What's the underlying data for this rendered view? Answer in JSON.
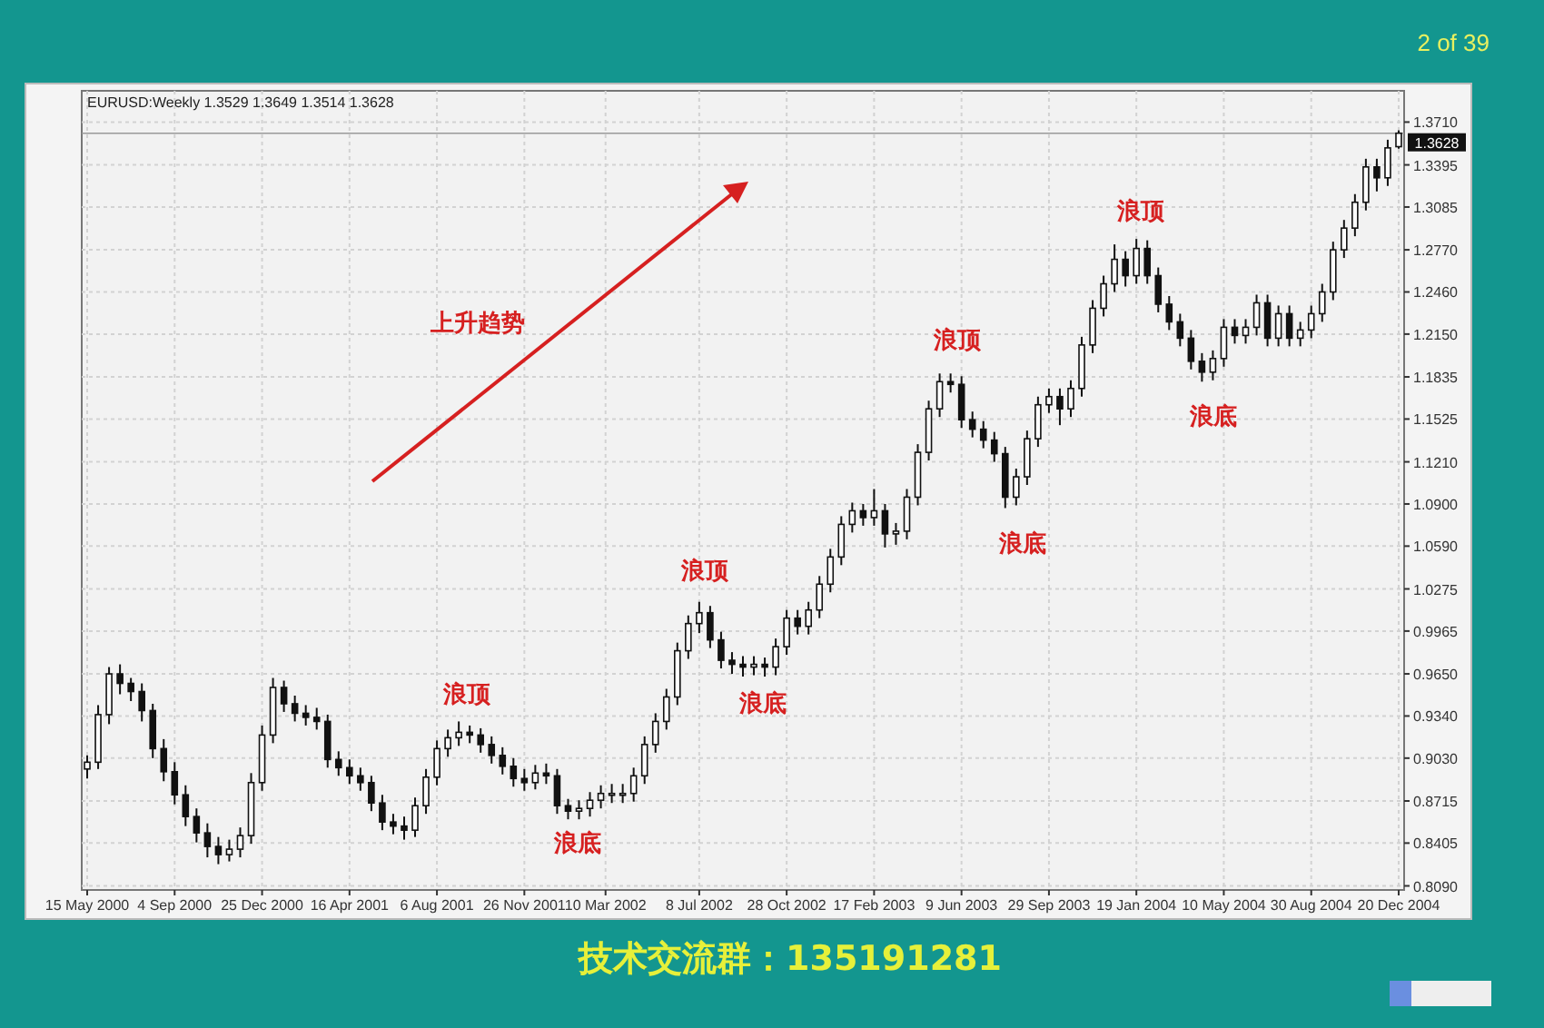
{
  "chart_data": {
    "type": "candlestick",
    "title": "EURUSD:Weekly  1.3529 1.3649 1.3514 1.3628",
    "color": "#111111",
    "x": [
      "2000-05-15",
      "2000-05-29",
      "2000-06-12",
      "2000-06-26",
      "2000-07-10",
      "2000-07-24",
      "2000-08-07",
      "2000-08-21",
      "2000-09-04",
      "2000-09-18",
      "2000-10-02",
      "2000-10-16",
      "2000-10-30",
      "2000-11-13",
      "2000-11-27",
      "2000-12-11",
      "2000-12-25",
      "2001-01-08",
      "2001-01-22",
      "2001-02-05",
      "2001-02-19",
      "2001-03-05",
      "2001-03-19",
      "2001-04-02",
      "2001-04-16",
      "2001-04-30",
      "2001-05-14",
      "2001-05-28",
      "2001-06-11",
      "2001-06-25",
      "2001-07-09",
      "2001-07-23",
      "2001-08-06",
      "2001-08-20",
      "2001-09-03",
      "2001-09-17",
      "2001-10-01",
      "2001-10-15",
      "2001-10-29",
      "2001-11-12",
      "2001-11-26",
      "2001-12-10",
      "2001-12-24",
      "2002-01-07",
      "2002-01-21",
      "2002-02-04",
      "2002-02-18",
      "2002-03-04",
      "2002-03-18",
      "2002-04-01",
      "2002-04-15",
      "2002-04-29",
      "2002-05-13",
      "2002-05-27",
      "2002-06-10",
      "2002-06-24",
      "2002-07-08",
      "2002-07-22",
      "2002-08-05",
      "2002-08-19",
      "2002-09-02",
      "2002-09-16",
      "2002-09-30",
      "2002-10-14",
      "2002-10-28",
      "2002-11-11",
      "2002-11-25",
      "2002-12-09",
      "2002-12-23",
      "2003-01-06",
      "2003-01-20",
      "2003-02-03",
      "2003-02-17",
      "2003-03-03",
      "2003-03-17",
      "2003-03-31",
      "2003-04-14",
      "2003-04-28",
      "2003-05-12",
      "2003-05-26",
      "2003-06-09",
      "2003-06-23",
      "2003-07-07",
      "2003-07-21",
      "2003-08-04",
      "2003-08-18",
      "2003-09-01",
      "2003-09-15",
      "2003-09-29",
      "2003-10-13",
      "2003-10-27",
      "2003-11-10",
      "2003-11-24",
      "2003-12-08",
      "2003-12-22",
      "2004-01-05",
      "2004-01-19",
      "2004-02-02",
      "2004-02-16",
      "2004-03-01",
      "2004-03-15",
      "2004-03-29",
      "2004-04-12",
      "2004-04-26",
      "2004-05-10",
      "2004-05-24",
      "2004-06-07",
      "2004-06-21",
      "2004-07-05",
      "2004-07-19",
      "2004-08-02",
      "2004-08-16",
      "2004-08-30",
      "2004-09-13",
      "2004-09-27",
      "2004-10-11",
      "2004-10-25",
      "2004-11-08",
      "2004-11-22",
      "2004-12-06",
      "2004-12-20"
    ],
    "ohlc": [
      [
        0.895,
        0.905,
        0.888,
        0.9
      ],
      [
        0.9,
        0.942,
        0.895,
        0.935
      ],
      [
        0.935,
        0.97,
        0.928,
        0.965
      ],
      [
        0.965,
        0.972,
        0.95,
        0.958
      ],
      [
        0.958,
        0.962,
        0.945,
        0.952
      ],
      [
        0.952,
        0.958,
        0.93,
        0.938
      ],
      [
        0.938,
        0.943,
        0.903,
        0.91
      ],
      [
        0.91,
        0.917,
        0.886,
        0.893
      ],
      [
        0.893,
        0.9,
        0.869,
        0.876
      ],
      [
        0.876,
        0.883,
        0.853,
        0.86
      ],
      [
        0.86,
        0.866,
        0.841,
        0.848
      ],
      [
        0.848,
        0.855,
        0.83,
        0.838
      ],
      [
        0.838,
        0.845,
        0.825,
        0.832
      ],
      [
        0.832,
        0.843,
        0.827,
        0.836
      ],
      [
        0.836,
        0.852,
        0.83,
        0.846
      ],
      [
        0.846,
        0.892,
        0.84,
        0.885
      ],
      [
        0.885,
        0.927,
        0.879,
        0.92
      ],
      [
        0.92,
        0.962,
        0.914,
        0.955
      ],
      [
        0.955,
        0.96,
        0.937,
        0.943
      ],
      [
        0.943,
        0.949,
        0.93,
        0.936
      ],
      [
        0.936,
        0.942,
        0.927,
        0.933
      ],
      [
        0.933,
        0.94,
        0.924,
        0.93
      ],
      [
        0.93,
        0.935,
        0.896,
        0.902
      ],
      [
        0.902,
        0.908,
        0.89,
        0.896
      ],
      [
        0.896,
        0.902,
        0.884,
        0.89
      ],
      [
        0.89,
        0.896,
        0.879,
        0.885
      ],
      [
        0.885,
        0.89,
        0.864,
        0.87
      ],
      [
        0.87,
        0.876,
        0.85,
        0.856
      ],
      [
        0.856,
        0.862,
        0.847,
        0.853
      ],
      [
        0.853,
        0.86,
        0.843,
        0.85
      ],
      [
        0.85,
        0.874,
        0.845,
        0.868
      ],
      [
        0.868,
        0.895,
        0.862,
        0.889
      ],
      [
        0.889,
        0.916,
        0.883,
        0.91
      ],
      [
        0.91,
        0.924,
        0.904,
        0.918
      ],
      [
        0.918,
        0.93,
        0.912,
        0.922
      ],
      [
        0.922,
        0.927,
        0.914,
        0.92
      ],
      [
        0.92,
        0.925,
        0.907,
        0.913
      ],
      [
        0.913,
        0.919,
        0.899,
        0.905
      ],
      [
        0.905,
        0.911,
        0.891,
        0.897
      ],
      [
        0.897,
        0.903,
        0.882,
        0.888
      ],
      [
        0.888,
        0.895,
        0.879,
        0.885
      ],
      [
        0.885,
        0.898,
        0.88,
        0.892
      ],
      [
        0.892,
        0.899,
        0.884,
        0.89
      ],
      [
        0.89,
        0.895,
        0.862,
        0.868
      ],
      [
        0.868,
        0.873,
        0.858,
        0.864
      ],
      [
        0.864,
        0.872,
        0.858,
        0.866
      ],
      [
        0.866,
        0.878,
        0.86,
        0.872
      ],
      [
        0.872,
        0.883,
        0.866,
        0.877
      ],
      [
        0.877,
        0.884,
        0.87,
        0.877
      ],
      [
        0.877,
        0.884,
        0.87,
        0.877
      ],
      [
        0.877,
        0.896,
        0.871,
        0.89
      ],
      [
        0.89,
        0.919,
        0.884,
        0.913
      ],
      [
        0.913,
        0.936,
        0.907,
        0.93
      ],
      [
        0.93,
        0.954,
        0.924,
        0.948
      ],
      [
        0.948,
        0.988,
        0.942,
        0.982
      ],
      [
        0.982,
        1.008,
        0.976,
        1.002
      ],
      [
        1.002,
        1.018,
        0.995,
        1.01
      ],
      [
        1.01,
        1.015,
        0.984,
        0.99
      ],
      [
        0.99,
        0.996,
        0.969,
        0.975
      ],
      [
        0.975,
        0.981,
        0.965,
        0.972
      ],
      [
        0.972,
        0.978,
        0.963,
        0.97
      ],
      [
        0.97,
        0.978,
        0.964,
        0.972
      ],
      [
        0.972,
        0.977,
        0.963,
        0.97
      ],
      [
        0.97,
        0.991,
        0.964,
        0.985
      ],
      [
        0.985,
        1.012,
        0.979,
        1.006
      ],
      [
        1.006,
        1.012,
        0.994,
        1.0
      ],
      [
        1.0,
        1.018,
        0.994,
        1.012
      ],
      [
        1.012,
        1.037,
        1.006,
        1.031
      ],
      [
        1.031,
        1.057,
        1.025,
        1.051
      ],
      [
        1.051,
        1.081,
        1.045,
        1.075
      ],
      [
        1.075,
        1.091,
        1.069,
        1.085
      ],
      [
        1.085,
        1.09,
        1.074,
        1.08
      ],
      [
        1.08,
        1.101,
        1.074,
        1.085
      ],
      [
        1.085,
        1.09,
        1.058,
        1.068
      ],
      [
        1.068,
        1.076,
        1.06,
        1.07
      ],
      [
        1.07,
        1.101,
        1.064,
        1.095
      ],
      [
        1.095,
        1.134,
        1.089,
        1.128
      ],
      [
        1.128,
        1.166,
        1.122,
        1.16
      ],
      [
        1.16,
        1.186,
        1.154,
        1.18
      ],
      [
        1.18,
        1.186,
        1.172,
        1.178
      ],
      [
        1.178,
        1.184,
        1.146,
        1.152
      ],
      [
        1.152,
        1.158,
        1.139,
        1.145
      ],
      [
        1.145,
        1.151,
        1.131,
        1.137
      ],
      [
        1.137,
        1.143,
        1.121,
        1.127
      ],
      [
        1.127,
        1.132,
        1.087,
        1.095
      ],
      [
        1.095,
        1.116,
        1.089,
        1.11
      ],
      [
        1.11,
        1.144,
        1.104,
        1.138
      ],
      [
        1.138,
        1.169,
        1.132,
        1.163
      ],
      [
        1.163,
        1.175,
        1.157,
        1.169
      ],
      [
        1.169,
        1.175,
        1.148,
        1.16
      ],
      [
        1.16,
        1.181,
        1.154,
        1.175
      ],
      [
        1.175,
        1.213,
        1.169,
        1.207
      ],
      [
        1.207,
        1.24,
        1.201,
        1.234
      ],
      [
        1.234,
        1.258,
        1.228,
        1.252
      ],
      [
        1.252,
        1.281,
        1.246,
        1.27
      ],
      [
        1.27,
        1.276,
        1.25,
        1.258
      ],
      [
        1.258,
        1.285,
        1.252,
        1.278
      ],
      [
        1.278,
        1.284,
        1.252,
        1.258
      ],
      [
        1.258,
        1.264,
        1.231,
        1.237
      ],
      [
        1.237,
        1.243,
        1.218,
        1.224
      ],
      [
        1.224,
        1.23,
        1.206,
        1.212
      ],
      [
        1.212,
        1.218,
        1.189,
        1.195
      ],
      [
        1.195,
        1.201,
        1.18,
        1.187
      ],
      [
        1.187,
        1.203,
        1.181,
        1.197
      ],
      [
        1.197,
        1.226,
        1.191,
        1.22
      ],
      [
        1.22,
        1.226,
        1.208,
        1.214
      ],
      [
        1.214,
        1.226,
        1.208,
        1.22
      ],
      [
        1.22,
        1.244,
        1.214,
        1.238
      ],
      [
        1.238,
        1.244,
        1.206,
        1.212
      ],
      [
        1.212,
        1.236,
        1.206,
        1.23
      ],
      [
        1.23,
        1.236,
        1.206,
        1.212
      ],
      [
        1.212,
        1.224,
        1.206,
        1.218
      ],
      [
        1.218,
        1.236,
        1.212,
        1.23
      ],
      [
        1.23,
        1.252,
        1.224,
        1.246
      ],
      [
        1.246,
        1.283,
        1.24,
        1.277
      ],
      [
        1.277,
        1.299,
        1.271,
        1.293
      ],
      [
        1.293,
        1.318,
        1.287,
        1.312
      ],
      [
        1.312,
        1.344,
        1.306,
        1.338
      ],
      [
        1.338,
        1.344,
        1.32,
        1.33
      ],
      [
        1.33,
        1.358,
        1.324,
        1.352
      ],
      [
        1.3529,
        1.3649,
        1.3514,
        1.3628
      ]
    ],
    "xlim": [
      "2000-05-08",
      "2004-12-27"
    ],
    "xticks": [
      {
        "value": "2000-05-15",
        "label": "15 May 2000"
      },
      {
        "value": "2000-09-04",
        "label": "4 Sep 2000"
      },
      {
        "value": "2000-12-25",
        "label": "25 Dec 2000"
      },
      {
        "value": "2001-04-16",
        "label": "16 Apr 2001"
      },
      {
        "value": "2001-08-06",
        "label": "6 Aug 2001"
      },
      {
        "value": "2001-11-26",
        "label": "26 Nov 2001"
      },
      {
        "value": "2002-03-10",
        "label": "10 Mar 2002"
      },
      {
        "value": "2002-07-08",
        "label": "8 Jul 2002"
      },
      {
        "value": "2002-10-28",
        "label": "28 Oct 2002"
      },
      {
        "value": "2003-02-17",
        "label": "17 Feb 2003"
      },
      {
        "value": "2003-06-09",
        "label": "9 Jun 2003"
      },
      {
        "value": "2003-09-29",
        "label": "29 Sep 2003"
      },
      {
        "value": "2004-01-19",
        "label": "19 Jan 2004"
      },
      {
        "value": "2004-05-10",
        "label": "10 May 2004"
      },
      {
        "value": "2004-08-30",
        "label": "30 Aug 2004"
      },
      {
        "value": "2004-12-20",
        "label": "20 Dec 2004"
      }
    ],
    "ylim": [
      0.806,
      1.394
    ],
    "yticks": [
      {
        "value": 1.371,
        "label": "1.3710"
      },
      1.3395,
      {
        "value": 1.3085,
        "label": "1.3085"
      },
      {
        "value": 1.277,
        "label": "1.2770"
      },
      {
        "value": 1.246,
        "label": "1.2460"
      },
      {
        "value": 1.215,
        "label": "1.2150"
      },
      1.1835,
      1.1525,
      {
        "value": 1.121,
        "label": "1.1210"
      },
      {
        "value": 1.09,
        "label": "1.0900"
      },
      {
        "value": 1.059,
        "label": "1.0590"
      },
      1.0275,
      0.9965,
      {
        "value": 0.965,
        "label": "0.9650"
      },
      {
        "value": 0.934,
        "label": "0.9340"
      },
      {
        "value": 0.903,
        "label": "0.9030"
      },
      0.8715,
      0.8405,
      {
        "value": 0.809,
        "label": "0.8090"
      }
    ],
    "grid": true,
    "ref_lines": [
      {
        "axis": "y",
        "value": 1.3628,
        "label": "1.3628",
        "color": "#999999"
      }
    ],
    "annotations": [
      "上升趋势",
      "浪顶",
      "浪底",
      "浪顶",
      "浪底",
      "浪顶",
      "浪底",
      "浪顶",
      "浪底",
      "2 of 39",
      "技术交流群：135191281"
    ]
  }
}
